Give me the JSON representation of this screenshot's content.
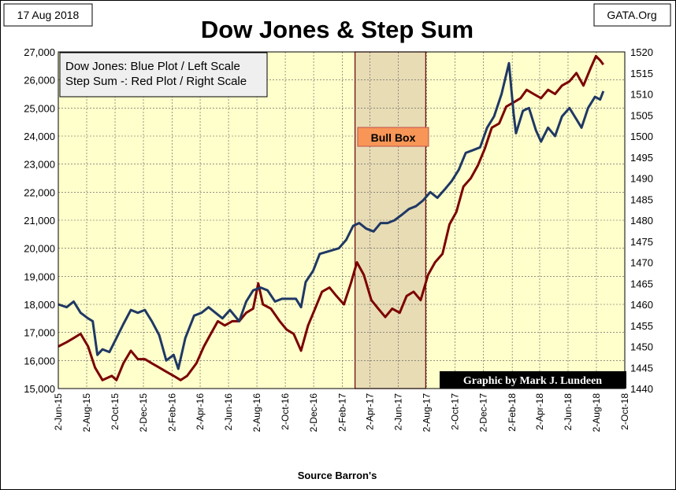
{
  "header": {
    "date": "17 Aug 2018",
    "source_site": "GATA.Org"
  },
  "chart_data": {
    "type": "line",
    "title": "Dow Jones & Step Sum",
    "xlabel": "Source Barron's",
    "legend": [
      "Dow Jones: Blue Plot / Left Scale",
      "Step Sum -: Red Plot / Right Scale"
    ],
    "annotations": {
      "bull_box_label": "Bull Box",
      "credit": "Graphic by Mark J. Lundeen"
    },
    "bull_box_range": [
      "2017-03-01",
      "2017-07-31"
    ],
    "grid": true,
    "legend_position": "top-left",
    "colors": {
      "dow": "#1f3864",
      "step": "#7b0000",
      "plot_bg": "#ffffcc",
      "bull_box": "#e8dcb5",
      "bull_label_bg": "#f79657",
      "credit_bg": "#000000"
    },
    "x_ticks": [
      "2-Jun-15",
      "2-Aug-15",
      "2-Oct-15",
      "2-Dec-15",
      "2-Feb-16",
      "2-Apr-16",
      "2-Jun-16",
      "2-Aug-16",
      "2-Oct-16",
      "2-Dec-16",
      "2-Feb-17",
      "2-Apr-17",
      "2-Jun-17",
      "2-Aug-17",
      "2-Oct-17",
      "2-Dec-17",
      "2-Feb-18",
      "2-Apr-18",
      "2-Jun-18",
      "2-Aug-18",
      "2-Oct-18"
    ],
    "x_tick_dates": [
      "2015-06-02",
      "2015-08-02",
      "2015-10-02",
      "2015-12-02",
      "2016-02-02",
      "2016-04-02",
      "2016-06-02",
      "2016-08-02",
      "2016-10-02",
      "2016-12-02",
      "2017-02-02",
      "2017-04-02",
      "2017-06-02",
      "2017-08-02",
      "2017-10-02",
      "2017-12-02",
      "2018-02-02",
      "2018-04-02",
      "2018-06-02",
      "2018-08-02",
      "2018-10-02"
    ],
    "y_left": {
      "min": 15000,
      "max": 27000,
      "ticks": [
        "15,000",
        "16,000",
        "17,000",
        "18,000",
        "19,000",
        "20,000",
        "21,000",
        "22,000",
        "23,000",
        "24,000",
        "25,000",
        "26,000",
        "27,000"
      ]
    },
    "y_right": {
      "min": 1440,
      "max": 1520,
      "ticks": [
        "1440",
        "1445",
        "1450",
        "1455",
        "1460",
        "1465",
        "1470",
        "1475",
        "1480",
        "1485",
        "1490",
        "1495",
        "1500",
        "1505",
        "1510",
        "1515",
        "1520"
      ]
    },
    "series": [
      {
        "name": "Dow Jones",
        "axis": "left",
        "points": [
          [
            "2015-06-02",
            18000
          ],
          [
            "2015-06-20",
            17900
          ],
          [
            "2015-07-05",
            18100
          ],
          [
            "2015-07-20",
            17700
          ],
          [
            "2015-08-05",
            17500
          ],
          [
            "2015-08-15",
            17400
          ],
          [
            "2015-08-25",
            16200
          ],
          [
            "2015-09-05",
            16400
          ],
          [
            "2015-09-20",
            16300
          ],
          [
            "2015-10-05",
            16800
          ],
          [
            "2015-10-20",
            17300
          ],
          [
            "2015-11-05",
            17800
          ],
          [
            "2015-11-20",
            17700
          ],
          [
            "2015-12-05",
            17800
          ],
          [
            "2015-12-20",
            17400
          ],
          [
            "2016-01-05",
            16900
          ],
          [
            "2016-01-20",
            16000
          ],
          [
            "2016-02-05",
            16200
          ],
          [
            "2016-02-15",
            15700
          ],
          [
            "2016-03-01",
            16800
          ],
          [
            "2016-03-20",
            17600
          ],
          [
            "2016-04-05",
            17700
          ],
          [
            "2016-04-20",
            17900
          ],
          [
            "2016-05-05",
            17700
          ],
          [
            "2016-05-20",
            17500
          ],
          [
            "2016-06-05",
            17800
          ],
          [
            "2016-06-25",
            17400
          ],
          [
            "2016-07-10",
            18100
          ],
          [
            "2016-07-25",
            18500
          ],
          [
            "2016-08-10",
            18600
          ],
          [
            "2016-08-25",
            18500
          ],
          [
            "2016-09-10",
            18100
          ],
          [
            "2016-09-25",
            18200
          ],
          [
            "2016-10-10",
            18200
          ],
          [
            "2016-10-25",
            18200
          ],
          [
            "2016-11-05",
            17900
          ],
          [
            "2016-11-15",
            18800
          ],
          [
            "2016-12-01",
            19200
          ],
          [
            "2016-12-15",
            19800
          ],
          [
            "2017-01-05",
            19900
          ],
          [
            "2017-01-25",
            20000
          ],
          [
            "2017-02-10",
            20300
          ],
          [
            "2017-02-25",
            20800
          ],
          [
            "2017-03-10",
            20900
          ],
          [
            "2017-03-25",
            20700
          ],
          [
            "2017-04-10",
            20600
          ],
          [
            "2017-04-25",
            20900
          ],
          [
            "2017-05-10",
            20900
          ],
          [
            "2017-05-25",
            21000
          ],
          [
            "2017-06-10",
            21200
          ],
          [
            "2017-06-25",
            21400
          ],
          [
            "2017-07-10",
            21500
          ],
          [
            "2017-07-25",
            21700
          ],
          [
            "2017-08-10",
            22000
          ],
          [
            "2017-08-25",
            21800
          ],
          [
            "2017-09-10",
            22100
          ],
          [
            "2017-09-25",
            22400
          ],
          [
            "2017-10-10",
            22800
          ],
          [
            "2017-10-25",
            23400
          ],
          [
            "2017-11-10",
            23500
          ],
          [
            "2017-11-25",
            23600
          ],
          [
            "2017-12-10",
            24300
          ],
          [
            "2017-12-25",
            24700
          ],
          [
            "2018-01-10",
            25500
          ],
          [
            "2018-01-26",
            26600
          ],
          [
            "2018-02-05",
            24800
          ],
          [
            "2018-02-10",
            24100
          ],
          [
            "2018-02-25",
            24900
          ],
          [
            "2018-03-10",
            25000
          ],
          [
            "2018-03-25",
            24200
          ],
          [
            "2018-04-05",
            23800
          ],
          [
            "2018-04-20",
            24300
          ],
          [
            "2018-05-05",
            24000
          ],
          [
            "2018-05-20",
            24700
          ],
          [
            "2018-06-05",
            25000
          ],
          [
            "2018-06-20",
            24600
          ],
          [
            "2018-07-01",
            24300
          ],
          [
            "2018-07-15",
            25000
          ],
          [
            "2018-07-30",
            25400
          ],
          [
            "2018-08-10",
            25300
          ],
          [
            "2018-08-17",
            25600
          ]
        ]
      },
      {
        "name": "Step Sum",
        "axis": "right",
        "points": [
          [
            "2015-06-02",
            1450
          ],
          [
            "2015-06-20",
            1451
          ],
          [
            "2015-07-05",
            1452
          ],
          [
            "2015-07-20",
            1453
          ],
          [
            "2015-08-05",
            1450
          ],
          [
            "2015-08-20",
            1445
          ],
          [
            "2015-09-05",
            1442
          ],
          [
            "2015-09-25",
            1443
          ],
          [
            "2015-10-05",
            1442
          ],
          [
            "2015-10-20",
            1446
          ],
          [
            "2015-11-05",
            1449
          ],
          [
            "2015-11-20",
            1447
          ],
          [
            "2015-12-05",
            1447
          ],
          [
            "2015-12-20",
            1446
          ],
          [
            "2016-01-05",
            1445
          ],
          [
            "2016-01-20",
            1444
          ],
          [
            "2016-02-05",
            1443
          ],
          [
            "2016-02-20",
            1442
          ],
          [
            "2016-03-05",
            1443
          ],
          [
            "2016-03-25",
            1446
          ],
          [
            "2016-04-10",
            1450
          ],
          [
            "2016-04-25",
            1453
          ],
          [
            "2016-05-10",
            1456
          ],
          [
            "2016-05-25",
            1455
          ],
          [
            "2016-06-10",
            1456
          ],
          [
            "2016-06-25",
            1456
          ],
          [
            "2016-07-10",
            1458
          ],
          [
            "2016-07-25",
            1459
          ],
          [
            "2016-08-05",
            1465
          ],
          [
            "2016-08-15",
            1460
          ],
          [
            "2016-09-01",
            1459
          ],
          [
            "2016-09-20",
            1456
          ],
          [
            "2016-10-05",
            1454
          ],
          [
            "2016-10-20",
            1453
          ],
          [
            "2016-11-05",
            1449
          ],
          [
            "2016-11-20",
            1455
          ],
          [
            "2016-12-05",
            1459
          ],
          [
            "2016-12-20",
            1463
          ],
          [
            "2017-01-05",
            1464
          ],
          [
            "2017-01-20",
            1462
          ],
          [
            "2017-02-05",
            1460
          ],
          [
            "2017-02-20",
            1465
          ],
          [
            "2017-03-05",
            1470
          ],
          [
            "2017-03-20",
            1467
          ],
          [
            "2017-04-05",
            1461
          ],
          [
            "2017-04-20",
            1459
          ],
          [
            "2017-05-05",
            1457
          ],
          [
            "2017-05-20",
            1459
          ],
          [
            "2017-06-05",
            1458
          ],
          [
            "2017-06-20",
            1462
          ],
          [
            "2017-07-05",
            1463
          ],
          [
            "2017-07-20",
            1461
          ],
          [
            "2017-08-05",
            1467
          ],
          [
            "2017-08-20",
            1470
          ],
          [
            "2017-09-05",
            1472
          ],
          [
            "2017-09-20",
            1479
          ],
          [
            "2017-10-05",
            1482
          ],
          [
            "2017-10-20",
            1488
          ],
          [
            "2017-11-05",
            1490
          ],
          [
            "2017-11-20",
            1493
          ],
          [
            "2017-12-05",
            1497
          ],
          [
            "2017-12-20",
            1502
          ],
          [
            "2018-01-05",
            1503
          ],
          [
            "2018-01-20",
            1507
          ],
          [
            "2018-02-05",
            1508
          ],
          [
            "2018-02-20",
            1509
          ],
          [
            "2018-03-05",
            1511
          ],
          [
            "2018-03-20",
            1510
          ],
          [
            "2018-04-05",
            1509
          ],
          [
            "2018-04-20",
            1511
          ],
          [
            "2018-05-05",
            1510
          ],
          [
            "2018-05-20",
            1512
          ],
          [
            "2018-06-05",
            1513
          ],
          [
            "2018-06-20",
            1515
          ],
          [
            "2018-07-05",
            1512
          ],
          [
            "2018-07-20",
            1516
          ],
          [
            "2018-08-01",
            1519
          ],
          [
            "2018-08-10",
            1518
          ],
          [
            "2018-08-17",
            1517
          ]
        ]
      }
    ]
  }
}
